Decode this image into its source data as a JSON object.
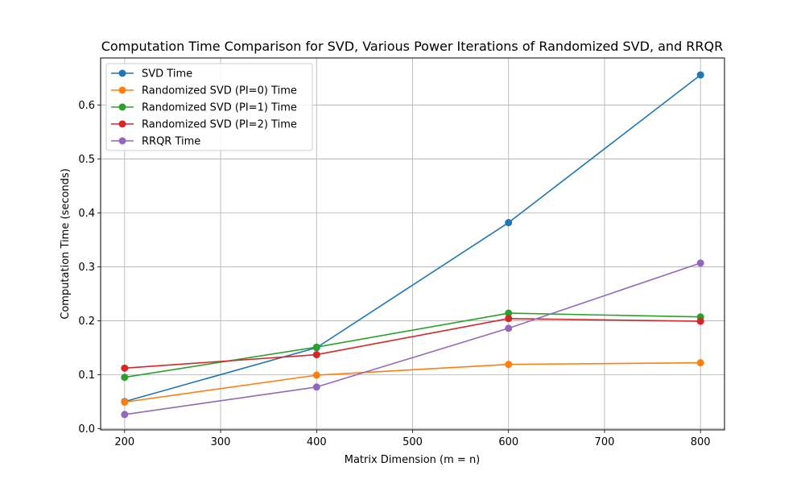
{
  "chart_data": {
    "type": "line",
    "title": "Computation Time Comparison for SVD, Various Power Iterations of Randomized SVD, and RRQR",
    "xlabel": "Matrix Dimension (m = n)",
    "ylabel": "Computation Time (seconds)",
    "x": [
      200,
      400,
      600,
      800
    ],
    "xlim": [
      175,
      825
    ],
    "ylim": [
      -0.0025,
      0.6875
    ],
    "xticks": [
      200,
      300,
      400,
      500,
      600,
      700,
      800
    ],
    "xtick_labels": [
      "200",
      "300",
      "400",
      "500",
      "600",
      "700",
      "800"
    ],
    "yticks": [
      0.0,
      0.1,
      0.2,
      0.3,
      0.4,
      0.5,
      0.6
    ],
    "ytick_labels": [
      "0.0",
      "0.1",
      "0.2",
      "0.3",
      "0.4",
      "0.5",
      "0.6"
    ],
    "grid": true,
    "legend_position": "upper left",
    "series": [
      {
        "name": "SVD Time",
        "color": "#1f77b4",
        "values": [
          0.05,
          0.15,
          0.382,
          0.656
        ]
      },
      {
        "name": "Randomized SVD (PI=0) Time",
        "color": "#ff7f0e",
        "values": [
          0.049,
          0.099,
          0.119,
          0.122
        ]
      },
      {
        "name": "Randomized SVD (PI=1) Time",
        "color": "#2ca02c",
        "values": [
          0.095,
          0.151,
          0.214,
          0.207
        ]
      },
      {
        "name": "Randomized SVD (PI=2) Time",
        "color": "#d62728",
        "values": [
          0.112,
          0.137,
          0.204,
          0.199
        ]
      },
      {
        "name": "RRQR Time",
        "color": "#9467bd",
        "values": [
          0.026,
          0.077,
          0.186,
          0.307
        ]
      }
    ]
  }
}
